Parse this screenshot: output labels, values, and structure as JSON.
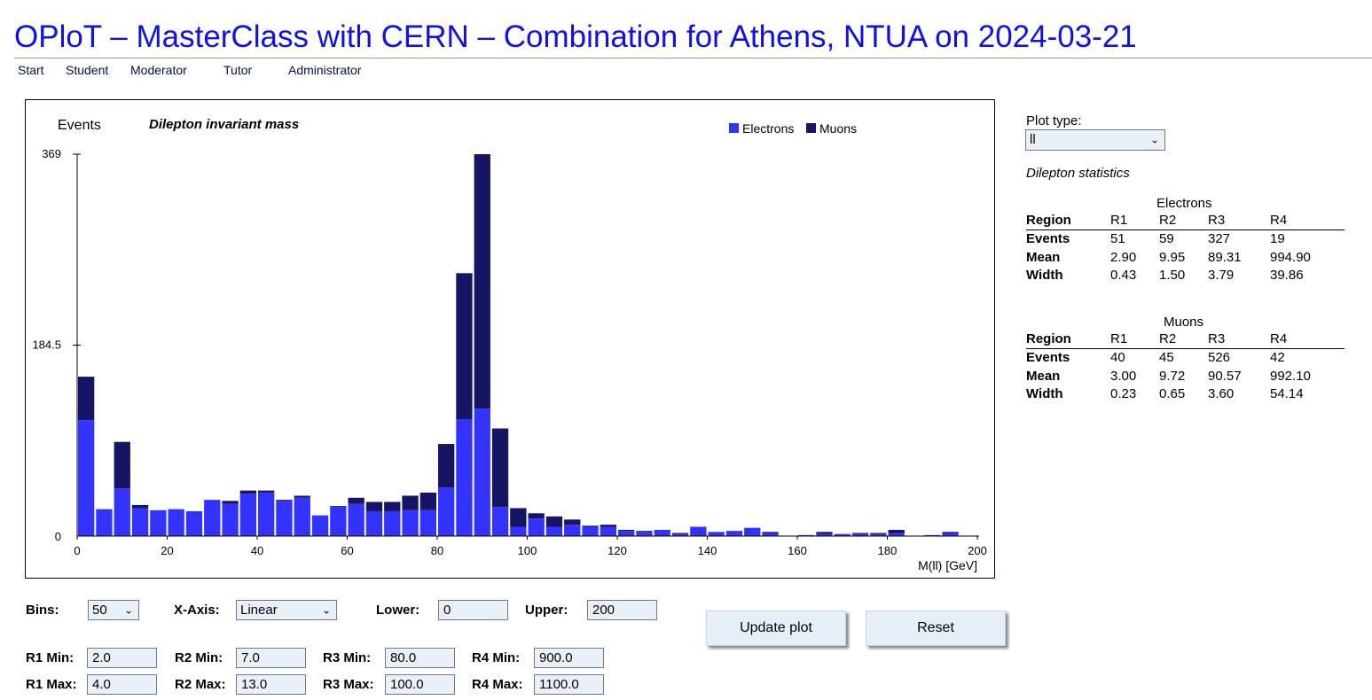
{
  "title": "OPloT – MasterClass with CERN – Combination for Athens, NTUA on 2024-03-21",
  "nav": [
    "Start",
    "Student",
    "Moderator",
    "Tutor",
    "Administrator"
  ],
  "plot": {
    "ylabel": "Events",
    "title": "Dilepton invariant mass",
    "legend": [
      "Electrons",
      "Muons"
    ]
  },
  "colors": {
    "electrons": "#3333ff",
    "muons": "#151563",
    "title": "#1010e8",
    "nav": "#001050"
  },
  "chart_data": {
    "type": "bar",
    "stacked": true,
    "title": "Dilepton invariant mass",
    "xlabel": "M(ll) [GeV]",
    "ylabel": "Events",
    "xlim": [
      0,
      200
    ],
    "ylim": [
      0,
      369
    ],
    "yticks": [
      "0",
      "184.5",
      "369"
    ],
    "xticks": [
      "0",
      "20",
      "40",
      "60",
      "80",
      "100",
      "120",
      "140",
      "160",
      "180",
      "200"
    ],
    "bin_width": 4,
    "legend_position": "top-right",
    "grid": false,
    "series": [
      {
        "name": "Electrons",
        "values": [
          112,
          26,
          46,
          27,
          25,
          26,
          24,
          35,
          31,
          41,
          42,
          34,
          37,
          20,
          28,
          31,
          24,
          24,
          25,
          25,
          47,
          113,
          123,
          28,
          9,
          17,
          9,
          11,
          9,
          9,
          5,
          4,
          6,
          2,
          9,
          4,
          5,
          8,
          3,
          0,
          1,
          2,
          2,
          2,
          2,
          3,
          0,
          1,
          3,
          0
        ]
      },
      {
        "name": "Muons",
        "values": [
          42,
          0,
          45,
          3,
          0,
          0,
          0,
          0,
          3,
          3,
          2,
          1,
          2,
          0,
          1,
          6,
          9,
          9,
          14,
          17,
          42,
          141,
          246,
          76,
          18,
          5,
          10,
          5,
          1,
          2,
          1,
          1,
          0,
          1,
          0,
          0,
          0,
          0,
          1,
          0,
          0,
          2,
          0,
          1,
          1,
          3,
          0,
          0,
          1,
          0
        ]
      }
    ]
  },
  "controls": {
    "plot_type_label": "Plot type:",
    "plot_type_value": "ll",
    "bins_label": "Bins:",
    "bins_value": "50",
    "xaxis_label": "X-Axis:",
    "xaxis_value": "Linear",
    "lower_label": "Lower:",
    "lower_value": "0",
    "upper_label": "Upper:",
    "upper_value": "200",
    "update_label": "Update plot",
    "reset_label": "Reset",
    "ranges": [
      {
        "min_label": "R1 Min:",
        "min": "2.0",
        "max_label": "R1 Max:",
        "max": "4.0"
      },
      {
        "min_label": "R2 Min:",
        "min": "7.0",
        "max_label": "R2 Max:",
        "max": "13.0"
      },
      {
        "min_label": "R3 Min:",
        "min": "80.0",
        "max_label": "R3 Max:",
        "max": "100.0"
      },
      {
        "min_label": "R4 Min:",
        "min": "900.0",
        "max_label": "R4 Max:",
        "max": "1100.0"
      }
    ]
  },
  "stats": {
    "heading": "Dilepton statistics",
    "electrons": {
      "title": "Electrons",
      "header": [
        "Region",
        "R1",
        "R2",
        "R3",
        "R4"
      ],
      "rows": [
        {
          "label": "Events",
          "vals": [
            "51",
            "59",
            "327",
            "19"
          ]
        },
        {
          "label": "Mean",
          "vals": [
            "2.90",
            "9.95",
            "89.31",
            "994.90"
          ]
        },
        {
          "label": "Width",
          "vals": [
            "0.43",
            "1.50",
            "3.79",
            "39.86"
          ]
        }
      ]
    },
    "muons": {
      "title": "Muons",
      "header": [
        "Region",
        "R1",
        "R2",
        "R3",
        "R4"
      ],
      "rows": [
        {
          "label": "Events",
          "vals": [
            "40",
            "45",
            "526",
            "42"
          ]
        },
        {
          "label": "Mean",
          "vals": [
            "3.00",
            "9.72",
            "90.57",
            "992.10"
          ]
        },
        {
          "label": "Width",
          "vals": [
            "0.23",
            "0.65",
            "3.60",
            "54.14"
          ]
        }
      ]
    }
  }
}
